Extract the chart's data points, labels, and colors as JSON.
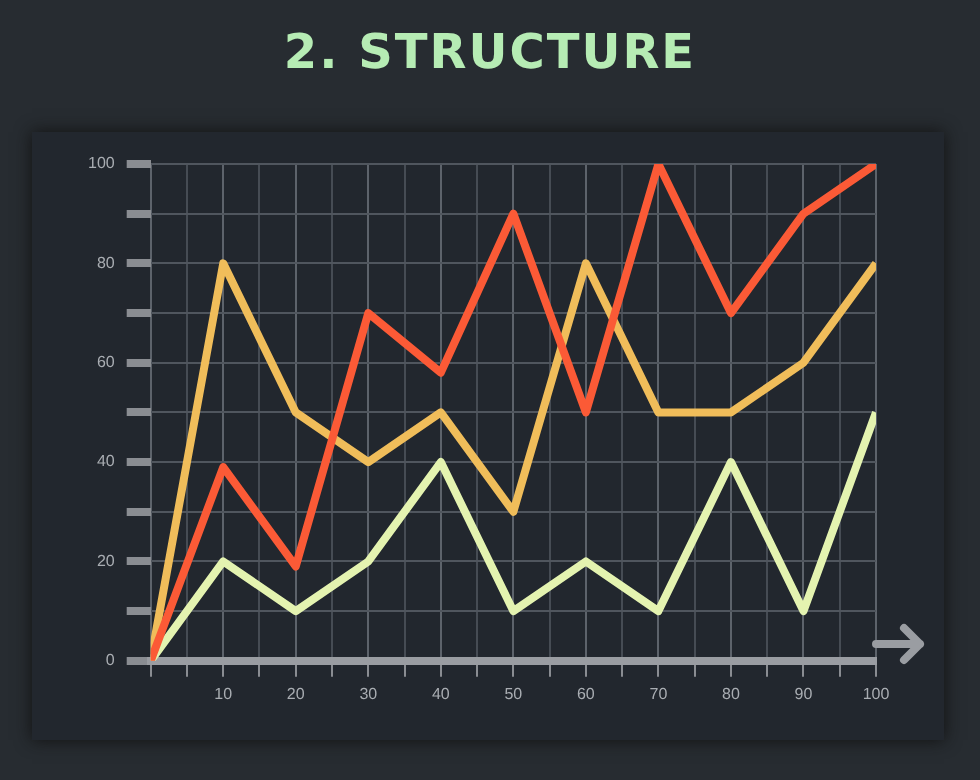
{
  "chart_data": {
    "type": "line",
    "title": "2. STRUCTURE",
    "x": [
      0,
      10,
      20,
      30,
      40,
      50,
      60,
      70,
      80,
      90,
      100
    ],
    "series": [
      {
        "color": "#fb5a36",
        "values": [
          0,
          39,
          19,
          70,
          58,
          90,
          50,
          100,
          70,
          90,
          100
        ]
      },
      {
        "color": "#f0bd5a",
        "values": [
          0,
          80,
          50,
          40,
          50,
          30,
          80,
          50,
          50,
          60,
          80
        ]
      },
      {
        "color": "#e4f3b0",
        "values": [
          0,
          20,
          10,
          20,
          40,
          10,
          20,
          10,
          40,
          10,
          50
        ]
      }
    ],
    "xlim": [
      0,
      100
    ],
    "xticks": [
      {
        "value": 0,
        "label": null
      },
      {
        "value": 5,
        "label": null
      },
      10,
      {
        "value": 15,
        "label": null
      },
      20,
      {
        "value": 25,
        "label": null
      },
      30,
      {
        "value": 35,
        "label": null
      },
      40,
      {
        "value": 45,
        "label": null
      },
      50,
      {
        "value": 55,
        "label": null
      },
      60,
      {
        "value": 65,
        "label": null
      },
      70,
      {
        "value": 75,
        "label": null
      },
      80,
      {
        "value": 85,
        "label": null
      },
      90,
      {
        "value": 95,
        "label": null
      },
      100
    ],
    "ylim": [
      0,
      100
    ],
    "yticks": [
      0,
      {
        "value": 10,
        "label": null
      },
      20,
      {
        "value": 30,
        "label": null
      },
      40,
      {
        "value": 50,
        "label": null
      },
      60,
      {
        "value": 70,
        "label": null
      },
      80,
      {
        "value": 90,
        "label": null
      },
      100
    ],
    "grid": true,
    "legend": false,
    "marker": "none",
    "line_style": "solid"
  }
}
